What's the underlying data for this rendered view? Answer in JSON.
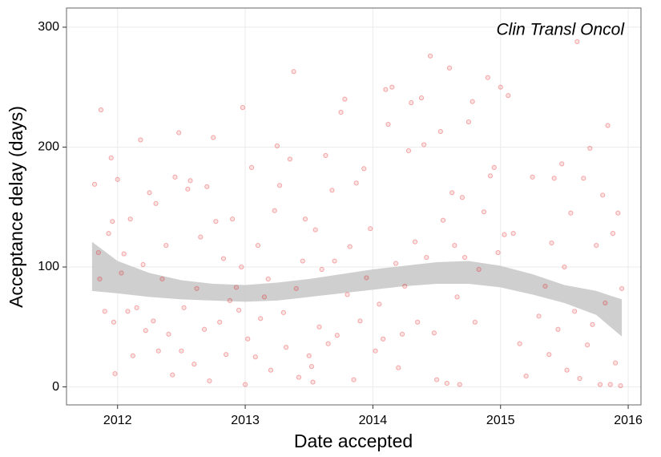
{
  "chart_data": {
    "type": "scatter",
    "annotation": "Clin Transl Oncol",
    "x_label": "Date accepted",
    "y_label": "Acceptance delay (days)",
    "xlim": [
      2011.6,
      2016.1
    ],
    "ylim": [
      -15,
      316
    ],
    "xticks": [
      2012,
      2013,
      2014,
      2015,
      2016
    ],
    "yticks": [
      0,
      100,
      200,
      300
    ],
    "grid": true,
    "series": [
      {
        "color": "#e41a1c",
        "x": [
          2011.82,
          2011.85,
          2011.86,
          2011.87,
          2011.9,
          2011.93,
          2011.95,
          2011.96,
          2011.97,
          2011.98,
          2012.0,
          2012.03,
          2012.05,
          2012.08,
          2012.1,
          2012.12,
          2012.15,
          2012.18,
          2012.2,
          2012.22,
          2012.25,
          2012.28,
          2012.3,
          2012.32,
          2012.35,
          2012.38,
          2012.4,
          2012.43,
          2012.45,
          2012.48,
          2012.5,
          2012.52,
          2012.55,
          2012.57,
          2012.6,
          2012.62,
          2012.65,
          2012.68,
          2012.7,
          2012.72,
          2012.75,
          2012.77,
          2012.8,
          2012.83,
          2012.85,
          2012.88,
          2012.9,
          2012.93,
          2012.95,
          2012.97,
          2012.98,
          2013.0,
          2013.02,
          2013.05,
          2013.08,
          2013.1,
          2013.12,
          2013.15,
          2013.18,
          2013.2,
          2013.23,
          2013.25,
          2013.27,
          2013.3,
          2013.32,
          2013.35,
          2013.38,
          2013.4,
          2013.42,
          2013.45,
          2013.47,
          2013.5,
          2013.52,
          2013.53,
          2013.55,
          2013.58,
          2013.6,
          2013.63,
          2013.65,
          2013.68,
          2013.7,
          2013.72,
          2013.75,
          2013.78,
          2013.8,
          2013.82,
          2013.85,
          2013.87,
          2013.9,
          2013.93,
          2013.95,
          2013.98,
          2014.02,
          2014.05,
          2014.08,
          2014.1,
          2014.12,
          2014.15,
          2014.18,
          2014.2,
          2014.23,
          2014.25,
          2014.28,
          2014.3,
          2014.33,
          2014.35,
          2014.38,
          2014.4,
          2014.42,
          2014.45,
          2014.48,
          2014.5,
          2014.53,
          2014.55,
          2014.58,
          2014.6,
          2014.62,
          2014.64,
          2014.66,
          2014.68,
          2014.7,
          2014.72,
          2014.75,
          2014.78,
          2014.8,
          2014.83,
          2014.87,
          2014.9,
          2014.92,
          2014.95,
          2014.98,
          2015.0,
          2015.03,
          2015.06,
          2015.1,
          2015.15,
          2015.2,
          2015.25,
          2015.3,
          2015.35,
          2015.38,
          2015.4,
          2015.42,
          2015.45,
          2015.48,
          2015.5,
          2015.52,
          2015.55,
          2015.58,
          2015.6,
          2015.62,
          2015.65,
          2015.68,
          2015.7,
          2015.72,
          2015.75,
          2015.78,
          2015.8,
          2015.82,
          2015.84,
          2015.86,
          2015.88,
          2015.9,
          2015.92,
          2015.94,
          2015.95
        ],
        "values": [
          169,
          112,
          90,
          231,
          63,
          128,
          191,
          138,
          54,
          11,
          173,
          95,
          111,
          63,
          140,
          26,
          66,
          206,
          102,
          47,
          162,
          55,
          153,
          30,
          90,
          118,
          44,
          10,
          175,
          212,
          30,
          66,
          165,
          172,
          19,
          82,
          125,
          48,
          167,
          5,
          208,
          138,
          54,
          107,
          27,
          72,
          140,
          83,
          64,
          100,
          233,
          2,
          40,
          183,
          25,
          118,
          57,
          75,
          90,
          14,
          147,
          201,
          168,
          62,
          33,
          190,
          263,
          82,
          8,
          105,
          140,
          26,
          17,
          4,
          131,
          50,
          98,
          193,
          36,
          164,
          105,
          43,
          229,
          240,
          77,
          117,
          6,
          170,
          55,
          182,
          91,
          132,
          30,
          69,
          40,
          248,
          219,
          250,
          103,
          16,
          44,
          84,
          197,
          237,
          121,
          54,
          241,
          202,
          108,
          276,
          45,
          6,
          213,
          139,
          3,
          266,
          162,
          118,
          75,
          2,
          158,
          108,
          221,
          238,
          54,
          98,
          146,
          258,
          176,
          183,
          112,
          250,
          127,
          243,
          128,
          36,
          9,
          175,
          59,
          84,
          27,
          120,
          174,
          48,
          186,
          100,
          14,
          145,
          63,
          288,
          7,
          174,
          35,
          199,
          52,
          118,
          2,
          160,
          70,
          218,
          2,
          128,
          20,
          145,
          1,
          82
        ]
      }
    ],
    "smooth": {
      "color": "#cccccc",
      "x": [
        2011.8,
        2012.0,
        2012.25,
        2012.5,
        2012.75,
        2013.0,
        2013.25,
        2013.5,
        2013.75,
        2014.0,
        2014.25,
        2014.5,
        2014.75,
        2015.0,
        2015.25,
        2015.5,
        2015.75,
        2015.95
      ],
      "upper": [
        121,
        105,
        95,
        89,
        86,
        85,
        87,
        90,
        94,
        98,
        101,
        104,
        105,
        101,
        94,
        85,
        80,
        73
      ],
      "lower": [
        80,
        78,
        75,
        73,
        72,
        71,
        72,
        75,
        78,
        81,
        84,
        86,
        86,
        83,
        77,
        70,
        60,
        42
      ]
    }
  }
}
